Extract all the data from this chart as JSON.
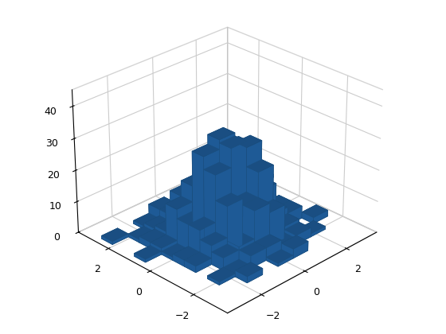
{
  "seed": 42,
  "n_samples": 500,
  "bins": 10,
  "bar_color": "#2266aa",
  "bar_edge_color": "#1a4f80",
  "alpha": 1.0,
  "xlim": [
    -3.5,
    3.5
  ],
  "ylim": [
    -3.5,
    3.5
  ],
  "zlim": [
    0,
    45
  ],
  "zticks": [
    0,
    10,
    20,
    30,
    40
  ],
  "xticks": [
    -2,
    0,
    2
  ],
  "yticks": [
    -2,
    0,
    2
  ],
  "elev": 28,
  "azim": -135,
  "figsize": [
    5.6,
    4.2
  ],
  "dpi": 100,
  "background_color": "#ffffff",
  "pane_color": "#f0f0f0",
  "grid_color": "#cccccc"
}
